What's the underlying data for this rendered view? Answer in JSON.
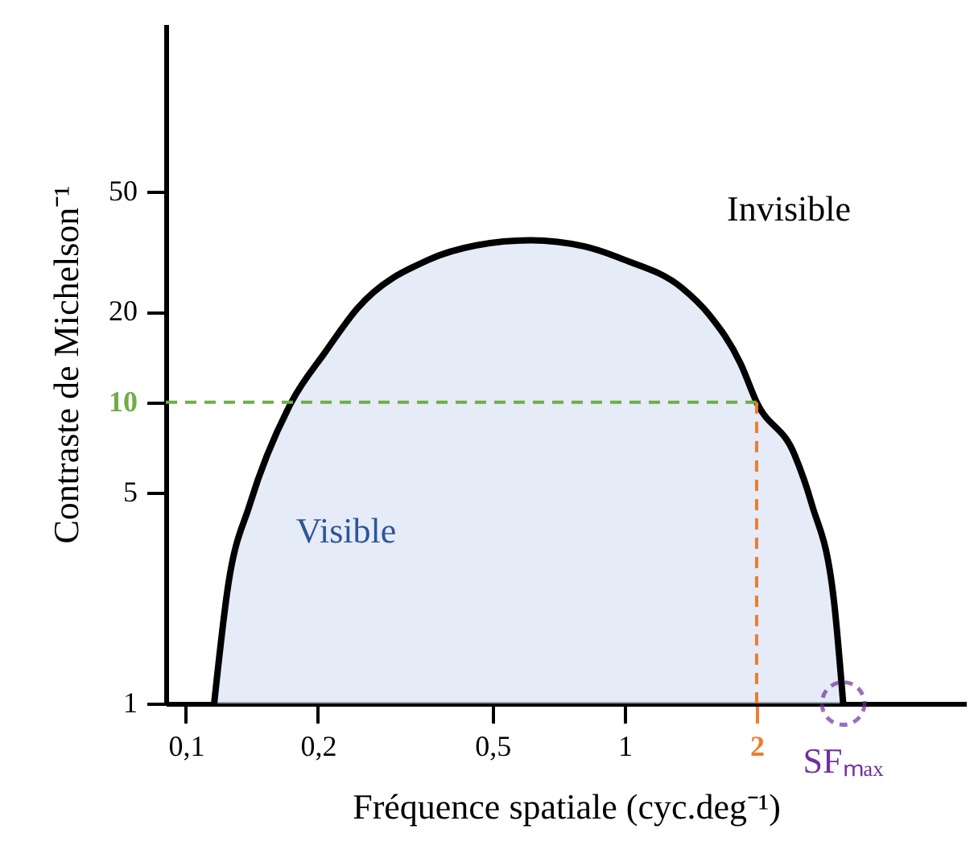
{
  "chart_data": {
    "type": "area",
    "xlabel": "Fréquence spatiale (cyc.deg⁻¹)",
    "ylabel": "Contraste de Michelson⁻¹",
    "log": "xy",
    "grid": false,
    "xlim": [
      0.09,
      6
    ],
    "ylim": [
      1,
      180
    ],
    "xticks": [
      {
        "value": 0.1,
        "label": "0,1"
      },
      {
        "value": 0.2,
        "label": "0,2"
      },
      {
        "value": 0.5,
        "label": "0,5"
      },
      1,
      2
    ],
    "yticks": [
      1,
      5,
      10,
      20,
      50
    ],
    "x": [
      0.116,
      0.125,
      0.14,
      0.174,
      0.208,
      0.246,
      0.357,
      0.46,
      0.61,
      0.81,
      1.0,
      1.35,
      1.56,
      1.84,
      2,
      2.44,
      2.67,
      3.0,
      3.15
    ],
    "series": [
      {
        "color": "#dae3f3",
        "values": [
          1,
          2.5,
          4.6,
          10,
          14.7,
          20.5,
          29.7,
          33.2,
          34.5,
          32.9,
          29.7,
          24,
          19.5,
          13.4,
          10,
          6.7,
          4.6,
          2.2,
          1
        ]
      }
    ],
    "ref_lines": [
      {
        "axis": "y",
        "value": 10,
        "color": "#70ad47",
        "line_style": "dashed"
      },
      {
        "axis": "x",
        "value": 2,
        "color": "#ed7d31",
        "line_style": "dashed"
      }
    ],
    "annotations": [
      "Invisible",
      "Visible",
      {
        "text": "SFₘₐₓ",
        "x": 3.15,
        "y": 1
      }
    ]
  }
}
